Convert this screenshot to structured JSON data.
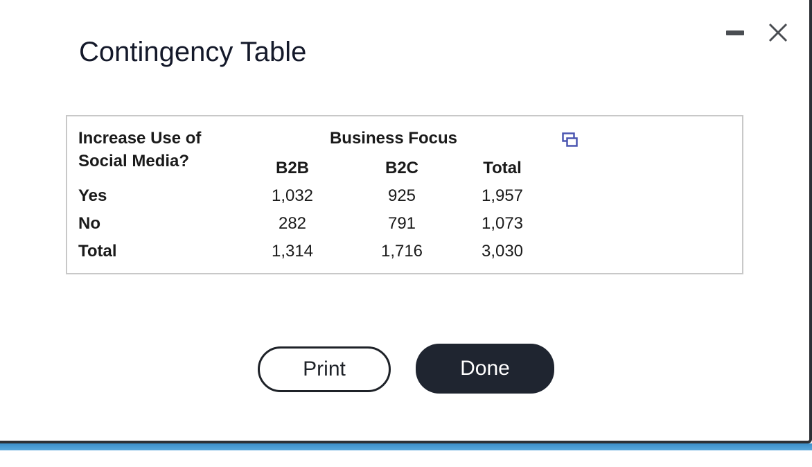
{
  "dialog": {
    "title": "Contingency Table",
    "minimize_icon": "minimize-icon",
    "close_icon": "close-icon"
  },
  "table": {
    "row_header_line1": "Increase Use of",
    "row_header_line2": "Social Media?",
    "column_group_header": "Business Focus",
    "columns": [
      "B2B",
      "B2C",
      "Total"
    ],
    "rows": [
      {
        "label": "Yes",
        "values": [
          "1,032",
          "925",
          "1,957"
        ]
      },
      {
        "label": "No",
        "values": [
          "282",
          "791",
          "1,073"
        ]
      },
      {
        "label": "Total",
        "values": [
          "1,314",
          "1,716",
          "3,030"
        ]
      }
    ],
    "copy_icon": "copy-to-spreadsheet-icon"
  },
  "buttons": {
    "print_label": "Print",
    "done_label": "Done"
  },
  "colors": {
    "done_button_bg": "#1f2530",
    "icon_blue": "#4a55b0",
    "accent_strip": "#3b8ec8"
  }
}
